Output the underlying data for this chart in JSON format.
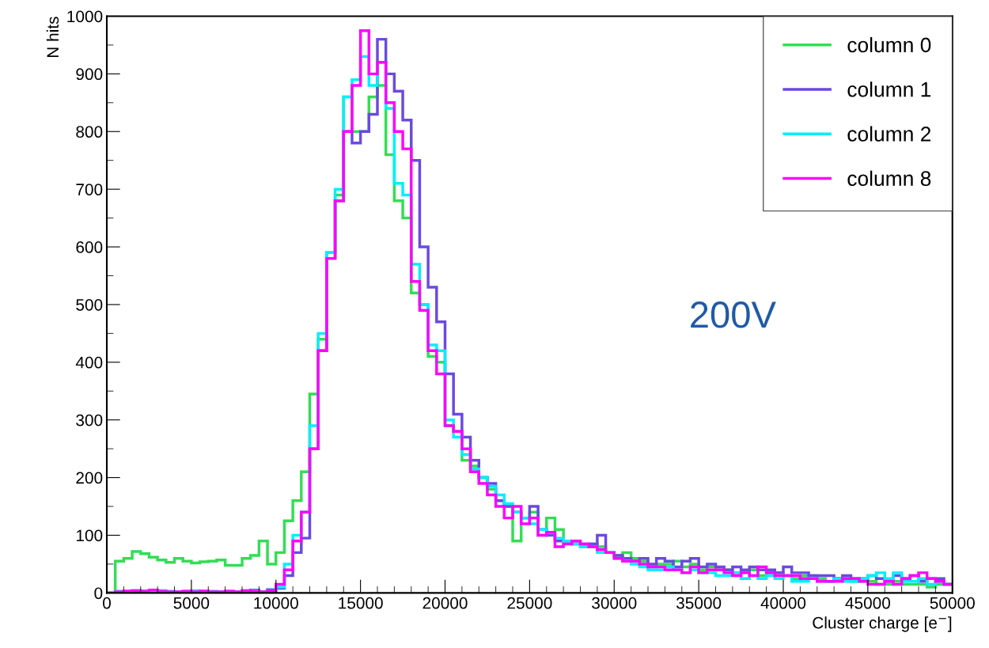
{
  "chart_data": {
    "type": "histogram",
    "xlabel": "Cluster charge [e$^{−}$]",
    "ylabel": "N hits",
    "bins": [
      0,
      500,
      1000,
      1500,
      2000,
      2500,
      3000,
      3500,
      4000,
      4500,
      5000,
      5500,
      6000,
      6500,
      7000,
      7500,
      8000,
      8500,
      9000,
      9500,
      10000,
      10500,
      11000,
      11500,
      12000,
      12500,
      13000,
      13500,
      14000,
      14500,
      15000,
      15500,
      16000,
      16500,
      17000,
      17500,
      18000,
      18500,
      19000,
      19500,
      20000,
      20500,
      21000,
      21500,
      22000,
      22500,
      23000,
      23500,
      24000,
      24500,
      25000,
      25500,
      26000,
      26500,
      27000,
      27500,
      28000,
      28500,
      29000,
      29500,
      30000,
      30500,
      31000,
      31500,
      32000,
      32500,
      33000,
      33500,
      34000,
      34500,
      35000,
      35500,
      36000,
      36500,
      37000,
      37500,
      38000,
      38500,
      39000,
      39500,
      40000,
      40500,
      41000,
      41500,
      42000,
      42500,
      43000,
      43500,
      44000,
      44500,
      45000,
      45500,
      46000,
      46500,
      47000,
      47500,
      48000,
      48500,
      49000,
      49500,
      50000
    ],
    "series": [
      {
        "name": "column 0",
        "color": "#33dd55",
        "values": [
          0,
          55,
          60,
          72,
          68,
          62,
          57,
          53,
          60,
          55,
          52,
          54,
          55,
          57,
          48,
          48,
          60,
          65,
          90,
          50,
          70,
          125,
          160,
          210,
          345,
          440,
          590,
          690,
          860,
          800,
          800,
          860,
          880,
          760,
          680,
          650,
          520,
          500,
          410,
          400,
          290,
          280,
          230,
          220,
          200,
          180,
          160,
          150,
          90,
          130,
          140,
          100,
          130,
          110,
          90,
          90,
          80,
          85,
          80,
          70,
          65,
          70,
          60,
          55,
          45,
          50,
          50,
          55,
          45,
          50,
          40,
          45,
          40,
          40,
          35,
          35,
          40,
          30,
          35,
          35,
          30,
          25,
          30,
          30,
          25,
          20,
          25,
          25,
          20,
          20,
          20,
          15,
          15,
          20,
          15,
          15,
          15,
          10,
          15,
          15
        ]
      },
      {
        "name": "column 1",
        "color": "#6a4ae0",
        "values": [
          0,
          2,
          3,
          2,
          3,
          2,
          1,
          2,
          1,
          2,
          2,
          3,
          2,
          1,
          2,
          2,
          3,
          5,
          2,
          3,
          8,
          30,
          70,
          95,
          250,
          420,
          580,
          680,
          800,
          780,
          800,
          830,
          960,
          900,
          870,
          820,
          750,
          600,
          530,
          470,
          380,
          310,
          270,
          230,
          200,
          190,
          160,
          150,
          140,
          130,
          150,
          110,
          100,
          90,
          90,
          85,
          85,
          85,
          100,
          70,
          65,
          60,
          55,
          60,
          50,
          60,
          55,
          45,
          55,
          60,
          45,
          50,
          45,
          40,
          45,
          40,
          45,
          40,
          40,
          35,
          45,
          35,
          35,
          30,
          30,
          30,
          25,
          30,
          25,
          25,
          30,
          25,
          20,
          30,
          25,
          30,
          20,
          25,
          25,
          15
        ]
      },
      {
        "name": "column 2",
        "color": "#00eeff",
        "values": [
          0,
          3,
          2,
          4,
          3,
          2,
          4,
          3,
          2,
          3,
          4,
          2,
          3,
          2,
          3,
          2,
          3,
          4,
          2,
          6,
          10,
          50,
          100,
          140,
          290,
          450,
          590,
          700,
          860,
          890,
          930,
          880,
          920,
          840,
          710,
          690,
          570,
          500,
          430,
          420,
          300,
          270,
          240,
          215,
          200,
          185,
          170,
          155,
          140,
          130,
          120,
          110,
          105,
          95,
          90,
          85,
          80,
          80,
          70,
          70,
          60,
          55,
          50,
          45,
          40,
          40,
          45,
          40,
          35,
          40,
          35,
          35,
          30,
          30,
          35,
          25,
          30,
          25,
          30,
          25,
          30,
          20,
          20,
          25,
          20,
          20,
          25,
          20,
          20,
          25,
          30,
          35,
          25,
          35,
          20,
          20,
          25,
          15,
          20,
          15
        ]
      },
      {
        "name": "column 8",
        "color": "#ff00ff",
        "values": [
          0,
          2,
          3,
          4,
          3,
          5,
          3,
          2,
          2,
          3,
          2,
          3,
          2,
          2,
          3,
          2,
          4,
          3,
          2,
          5,
          15,
          40,
          90,
          140,
          250,
          420,
          580,
          680,
          800,
          880,
          975,
          900,
          920,
          850,
          800,
          770,
          540,
          490,
          420,
          380,
          290,
          280,
          250,
          210,
          190,
          170,
          150,
          130,
          150,
          120,
          130,
          100,
          105,
          80,
          85,
          90,
          85,
          80,
          75,
          70,
          60,
          55,
          55,
          50,
          45,
          45,
          40,
          40,
          35,
          45,
          35,
          40,
          40,
          35,
          30,
          35,
          30,
          45,
          35,
          30,
          30,
          30,
          25,
          25,
          20,
          20,
          20,
          25,
          25,
          20,
          15,
          15,
          20,
          15,
          25,
          30,
          35,
          25,
          20,
          15
        ]
      }
    ],
    "xlim": [
      0,
      50000
    ],
    "ylim": [
      0,
      1000
    ],
    "xticks": [
      0,
      5000,
      10000,
      15000,
      20000,
      25000,
      30000,
      35000,
      40000,
      45000,
      50000
    ],
    "yticks": [
      0,
      100,
      200,
      300,
      400,
      500,
      600,
      700,
      800,
      900,
      1000
    ],
    "annotations": [
      "200V"
    ],
    "legend": "top right",
    "grid": false
  }
}
